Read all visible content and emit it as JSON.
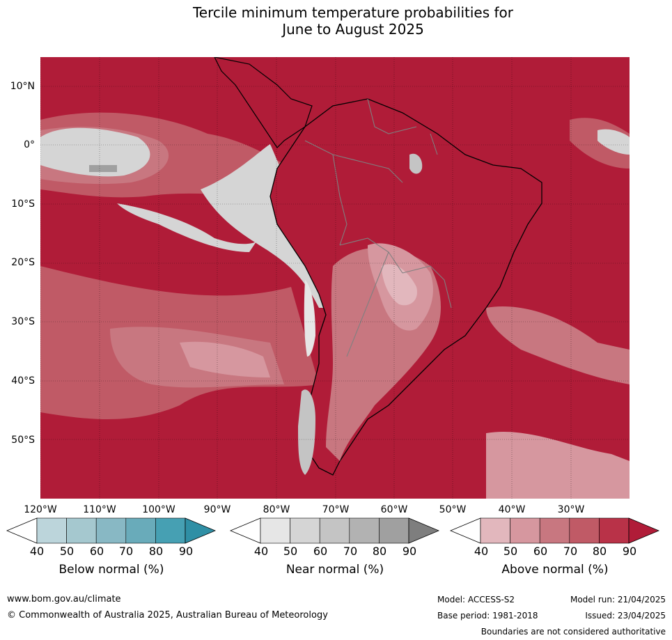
{
  "title": {
    "line1": "Tercile minimum temperature probabilities for",
    "line2": "June to August 2025"
  },
  "map": {
    "lat_labels": [
      "10°N",
      "0°",
      "10°S",
      "20°S",
      "30°S",
      "40°S",
      "50°S"
    ],
    "lon_labels": [
      "120°W",
      "110°W",
      "100°W",
      "90°W",
      "80°W",
      "70°W",
      "60°W",
      "50°W",
      "40°W",
      "30°W"
    ]
  },
  "legend": {
    "below": {
      "title": "Below normal (%)",
      "ticks": [
        "40",
        "50",
        "60",
        "70",
        "80",
        "90"
      ],
      "colors": [
        "#ffffff",
        "#bcd5db",
        "#a5c8cf",
        "#88b8c4",
        "#69abba",
        "#46a0b3",
        "#2f8fa5"
      ]
    },
    "near": {
      "title": "Near normal (%)",
      "ticks": [
        "40",
        "50",
        "60",
        "70",
        "80",
        "90"
      ],
      "colors": [
        "#ffffff",
        "#e6e6e6",
        "#d5d5d5",
        "#c4c4c4",
        "#b2b2b2",
        "#a0a0a0",
        "#7e7e7e"
      ]
    },
    "above": {
      "title": "Above normal (%)",
      "ticks": [
        "40",
        "50",
        "60",
        "70",
        "80",
        "90"
      ],
      "colors": [
        "#ffffff",
        "#e2b7bd",
        "#d6979f",
        "#c87780",
        "#c05a66",
        "#b93248",
        "#b01c38"
      ]
    }
  },
  "footer": {
    "website": "www.bom.gov.au/climate",
    "copyright": "© Commonwealth of Australia 2025, Australian Bureau of Meteorology",
    "model": "Model: ACCESS-S2",
    "model_run": "Model run: 21/04/2025",
    "base_period": "Base period: 1981-2018",
    "issued": "Issued: 23/04/2025",
    "boundaries": "Boundaries are not considered authoritative"
  }
}
